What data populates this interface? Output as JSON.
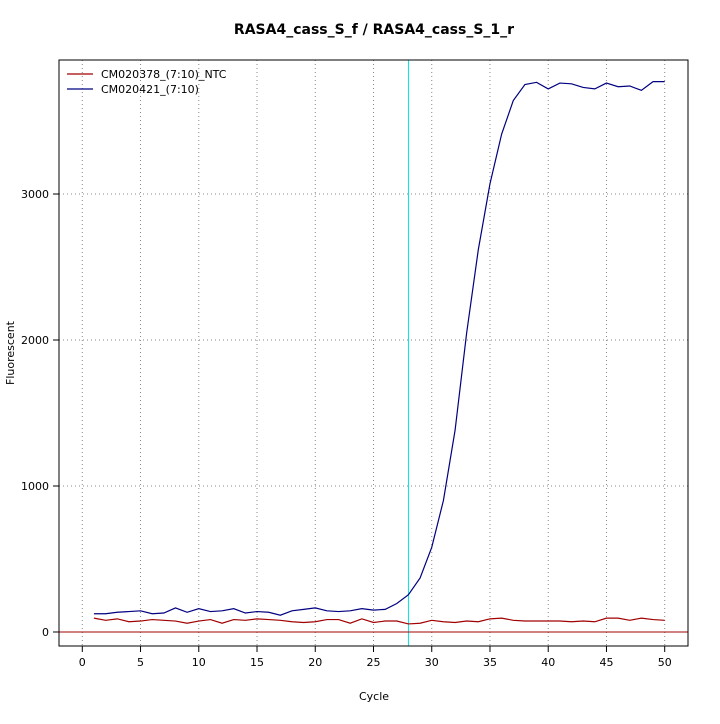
{
  "chart_data": {
    "type": "line",
    "title": "RASA4_cass_S_f / RASA4_cass_S_1_r",
    "x_label": "Cycle",
    "y_label": "Fluorescent",
    "x": [
      1,
      2,
      3,
      4,
      5,
      6,
      7,
      8,
      9,
      10,
      11,
      12,
      13,
      14,
      15,
      16,
      17,
      18,
      19,
      20,
      21,
      22,
      23,
      24,
      25,
      26,
      27,
      28,
      29,
      30,
      31,
      32,
      33,
      34,
      35,
      36,
      37,
      38,
      39,
      40,
      41,
      42,
      43,
      44,
      45,
      46,
      47,
      48,
      49,
      50
    ],
    "series": [
      {
        "name": "CM020378_(7:10)_NTC",
        "color": "#a00000",
        "values": [
          95,
          80,
          90,
          70,
          75,
          85,
          80,
          75,
          60,
          75,
          85,
          60,
          85,
          80,
          90,
          85,
          80,
          70,
          65,
          70,
          85,
          85,
          60,
          90,
          65,
          75,
          75,
          55,
          60,
          80,
          70,
          65,
          75,
          70,
          90,
          95,
          80,
          75,
          75,
          75,
          75,
          70,
          75,
          70,
          95,
          95,
          80,
          95,
          85,
          80
        ]
      },
      {
        "name": "CM020421_(7:10)",
        "color": "#000080",
        "values": [
          125,
          125,
          135,
          140,
          145,
          125,
          130,
          165,
          135,
          160,
          140,
          145,
          160,
          130,
          140,
          135,
          115,
          145,
          155,
          165,
          145,
          140,
          145,
          160,
          150,
          155,
          195,
          255,
          370,
          580,
          900,
          1380,
          2050,
          2620,
          3070,
          3410,
          3640,
          3750,
          3765,
          3720,
          3760,
          3755,
          3730,
          3720,
          3760,
          3735,
          3740,
          3710,
          3770,
          3770
        ]
      }
    ],
    "xlim": [
      -2,
      52
    ],
    "ylim": [
      -96,
      3918
    ],
    "xticks": [
      0,
      5,
      10,
      15,
      20,
      25,
      30,
      35,
      40,
      45,
      50
    ],
    "yticks": [
      0,
      1000,
      2000,
      3000
    ],
    "grid": true,
    "legend": "top-left",
    "threshold_x": 28,
    "threshold_x_color": "#00e5e5",
    "threshold_y": 0,
    "threshold_y_color": "#a00000"
  }
}
